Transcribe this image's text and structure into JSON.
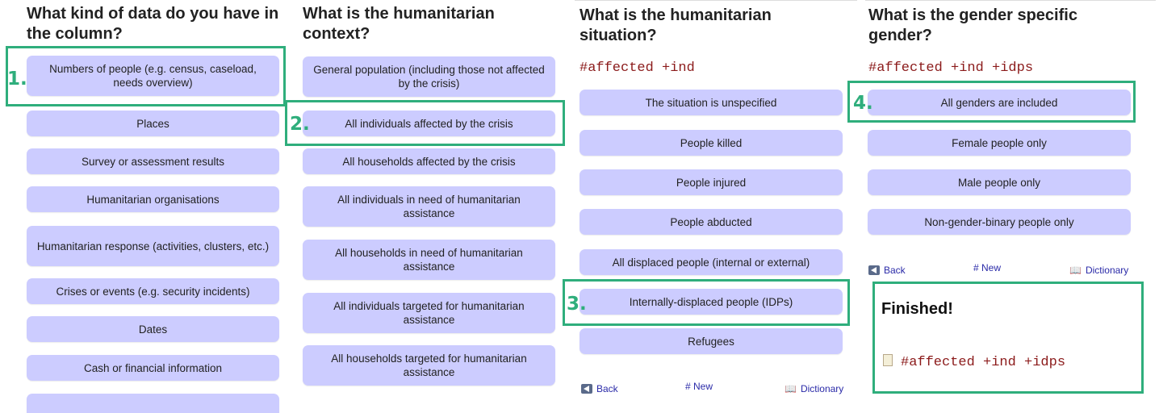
{
  "panel1": {
    "title": "What kind of data do you have in the column?",
    "options": [
      "Numbers of people (e.g. census, caseload, needs overview)",
      "Places",
      "Survey or assessment results",
      "Humanitarian organisations",
      "Humanitarian response (activities, clusters, etc.)",
      "Crises or events (e.g. security incidents)",
      "Dates",
      "Cash or financial information"
    ],
    "step": "1."
  },
  "panel2": {
    "title": "What is the humanitarian context?",
    "options": [
      "General population (including those not affected by the crisis)",
      "All individuals affected by the crisis",
      "All households affected by the crisis",
      "All individuals in need of humanitarian assistance",
      "All households in need of humanitarian assistance",
      "All individuals targeted for humanitarian assistance",
      "All households targeted for humanitarian assistance"
    ],
    "step": "2."
  },
  "panel3": {
    "title": "What is the humanitarian situation?",
    "tag": "#affected +ind",
    "options": [
      "The situation is unspecified",
      "People killed",
      "People injured",
      "People abducted",
      "All displaced people (internal or external)",
      "Internally-displaced people (IDPs)",
      "Refugees"
    ],
    "step": "3.",
    "nav": {
      "back": "Back",
      "new": "# New",
      "dictionary": "Dictionary"
    }
  },
  "panel4": {
    "title": "What is the gender specific gender?",
    "tag": "#affected +ind +idps",
    "options": [
      "All genders are included",
      "Female people only",
      "Male people only",
      "Non-gender-binary people only"
    ],
    "step": "4.",
    "nav": {
      "back": "Back",
      "new": "# New",
      "dictionary": "Dictionary"
    },
    "finished": {
      "title": "Finished!",
      "tag": "#affected +ind +idps"
    }
  },
  "colors": {
    "highlight": "#2fae7c",
    "button": "#ccccff",
    "tag": "#8b1a1a",
    "link": "#2a2aa8"
  }
}
